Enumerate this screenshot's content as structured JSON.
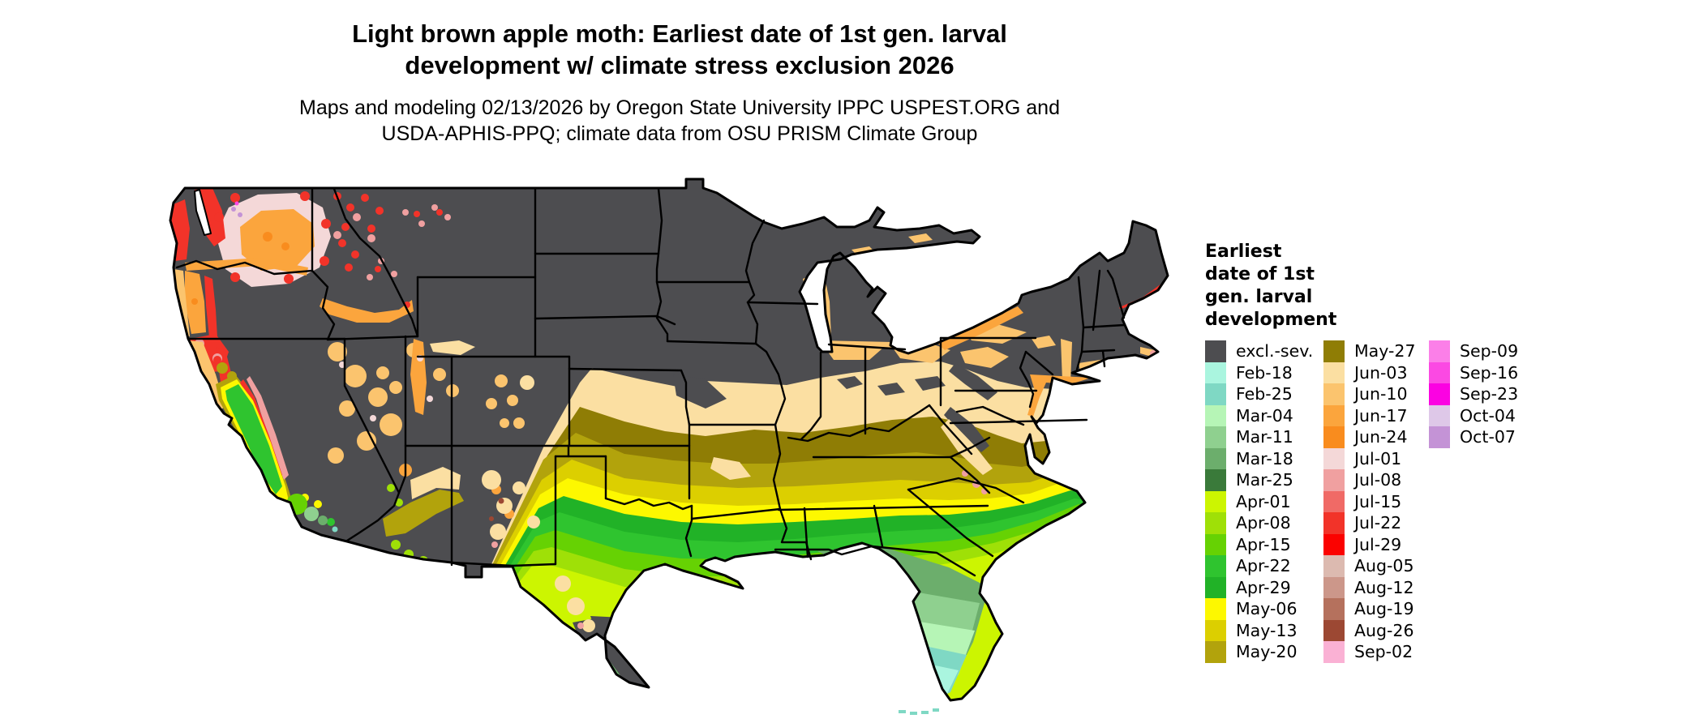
{
  "title": {
    "lines": [
      "Light brown apple moth: Earliest date of 1st gen. larval",
      "development w/ climate stress exclusion 2026"
    ]
  },
  "subtitle": {
    "lines": [
      "Maps and modeling 02/13/2026 by Oregon State University IPPC USPEST.ORG and",
      "USDA-APHIS-PPQ; climate data from OSU PRISM Climate Group"
    ]
  },
  "legend": {
    "title_lines": [
      "Earliest",
      "date of 1st",
      "gen. larval",
      "development"
    ],
    "columns": [
      {
        "entries": [
          {
            "label": "excl.-sev.",
            "key": "excl"
          },
          {
            "label": "Feb-18",
            "key": "feb18"
          },
          {
            "label": "Feb-25",
            "key": "feb25"
          },
          {
            "label": "Mar-04",
            "key": "mar04"
          },
          {
            "label": "Mar-11",
            "key": "mar11"
          },
          {
            "label": "Mar-18",
            "key": "mar18"
          },
          {
            "label": "Mar-25",
            "key": "mar25"
          },
          {
            "label": "Apr-01",
            "key": "apr01"
          },
          {
            "label": "Apr-08",
            "key": "apr08"
          },
          {
            "label": "Apr-15",
            "key": "apr15"
          },
          {
            "label": "Apr-22",
            "key": "apr22"
          },
          {
            "label": "Apr-29",
            "key": "apr29"
          },
          {
            "label": "May-06",
            "key": "may06"
          },
          {
            "label": "May-13",
            "key": "may13"
          },
          {
            "label": "May-20",
            "key": "may20"
          }
        ]
      },
      {
        "entries": [
          {
            "label": "May-27",
            "key": "may27"
          },
          {
            "label": "Jun-03",
            "key": "jun03"
          },
          {
            "label": "Jun-10",
            "key": "jun10"
          },
          {
            "label": "Jun-17",
            "key": "jun17"
          },
          {
            "label": "Jun-24",
            "key": "jun24"
          },
          {
            "label": "Jul-01",
            "key": "jul01"
          },
          {
            "label": "Jul-08",
            "key": "jul08"
          },
          {
            "label": "Jul-15",
            "key": "jul15"
          },
          {
            "label": "Jul-22",
            "key": "jul22"
          },
          {
            "label": "Jul-29",
            "key": "jul29"
          },
          {
            "label": "Aug-05",
            "key": "aug05"
          },
          {
            "label": "Aug-12",
            "key": "aug12"
          },
          {
            "label": "Aug-19",
            "key": "aug19"
          },
          {
            "label": "Aug-26",
            "key": "aug26"
          },
          {
            "label": "Sep-02",
            "key": "sep02"
          }
        ]
      },
      {
        "entries": [
          {
            "label": "Sep-09",
            "key": "sep09"
          },
          {
            "label": "Sep-16",
            "key": "sep16"
          },
          {
            "label": "Sep-23",
            "key": "sep23"
          },
          {
            "label": "Oct-04",
            "key": "oct04"
          },
          {
            "label": "Oct-07",
            "key": "oct07"
          }
        ]
      }
    ]
  },
  "map": {
    "background": "#ffffff",
    "border_color": "#000000",
    "colors": {
      "white": "#ffffff",
      "excl": "#4d4d50",
      "feb18": "#aaf5df",
      "feb25": "#7fd8c4",
      "mar04": "#b6f5b6",
      "mar11": "#8fd08f",
      "mar18": "#6cae6c",
      "mar25": "#3a7a3a",
      "apr01": "#ccf501",
      "apr08": "#9fe007",
      "apr15": "#66d203",
      "apr22": "#2fc42f",
      "apr29": "#21b227",
      "may06": "#fdf800",
      "may13": "#dccf00",
      "may20": "#b2a30c",
      "may27": "#8f7d05",
      "jun03": "#fbdfa2",
      "jun10": "#fbc46e",
      "jun17": "#fba53d",
      "jun24": "#f98c1e",
      "jul01": "#f4d8d8",
      "jul08": "#f0a0a0",
      "jul15": "#f06a66",
      "jul22": "#f23329",
      "jul29": "#fb0200",
      "aug05": "#dcbab0",
      "aug12": "#cc978a",
      "aug19": "#b5715d",
      "aug26": "#9c4833",
      "sep02": "#fab1d4",
      "sep09": "#fb7fe8",
      "sep16": "#fb49e3",
      "sep23": "#fb02e2",
      "oct04": "#dec8e8",
      "oct07": "#c493d6"
    }
  }
}
